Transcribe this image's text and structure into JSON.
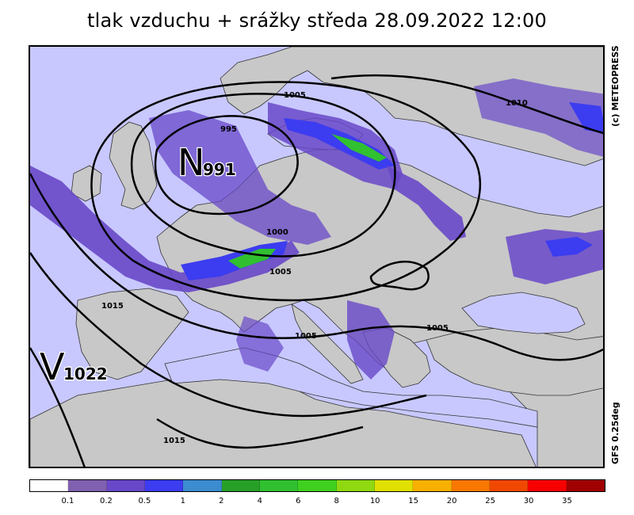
{
  "title": "tlak vzduchu + srážky  středa 28.09.2022 12:00",
  "copyright": "(c) METEOPRESS",
  "model": "GFS 0.25deg",
  "colors": {
    "sea": "#c8c8ff",
    "land": "#c8c8c8",
    "contour": "#000000"
  },
  "pressure_centers": [
    {
      "type": "N",
      "value": "991"
    },
    {
      "type": "V",
      "value": "1022"
    }
  ],
  "isobar_labels": [
    "1005",
    "995",
    "1010",
    "1000",
    "1005",
    "1015",
    "1005",
    "1005",
    "1015"
  ],
  "legend": {
    "colors": [
      "#ffffff",
      "#8060b0",
      "#6848c8",
      "#3c3cf0",
      "#3c8cd0",
      "#28a028",
      "#30c030",
      "#40d020",
      "#90d810",
      "#e0e000",
      "#f8b000",
      "#f87800",
      "#f04800",
      "#f80000",
      "#a00000"
    ],
    "thresholds": [
      "0.1",
      "0.2",
      "0.5",
      "1",
      "2",
      "4",
      "6",
      "8",
      "10",
      "15",
      "20",
      "25",
      "30",
      "35"
    ]
  }
}
